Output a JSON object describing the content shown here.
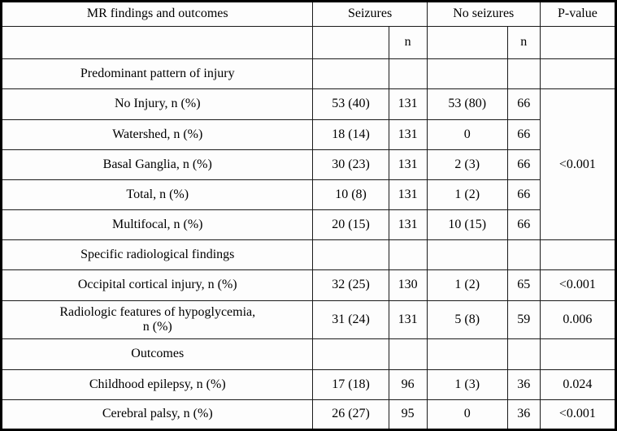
{
  "table": {
    "columns": {
      "findings_label": "MR findings and outcomes",
      "seizures_label": "Seizures",
      "no_seizures_label": "No seizures",
      "p_value_label": "P-value",
      "seizures_n_label": "n",
      "no_seizures_n_label": "n"
    },
    "rows": [
      {
        "type": "section",
        "label": "Predominant pattern of injury"
      },
      {
        "type": "data",
        "label": "No Injury, n (%)",
        "seizures": "53 (40)",
        "seizures_n": "131",
        "no_seizures": "53 (80)",
        "no_seizures_n": "66",
        "p": "<0.001",
        "p_rowspan": 5
      },
      {
        "type": "data",
        "label": "Watershed, n (%)",
        "seizures": "18 (14)",
        "seizures_n": "131",
        "no_seizures": "0",
        "no_seizures_n": "66",
        "p_merged": true
      },
      {
        "type": "data",
        "label": "Basal Ganglia, n (%)",
        "seizures": "30 (23)",
        "seizures_n": "131",
        "no_seizures": "2 (3)",
        "no_seizures_n": "66",
        "p_merged": true
      },
      {
        "type": "data",
        "label": "Total, n (%)",
        "seizures": "10 (8)",
        "seizures_n": "131",
        "no_seizures": "1 (2)",
        "no_seizures_n": "66",
        "p_merged": true
      },
      {
        "type": "data",
        "label": "Multifocal, n (%)",
        "seizures": "20 (15)",
        "seizures_n": "131",
        "no_seizures": "10 (15)",
        "no_seizures_n": "66",
        "p_merged": true
      },
      {
        "type": "section",
        "label": "Specific radiological findings"
      },
      {
        "type": "data",
        "label": "Occipital cortical injury, n (%)",
        "seizures": "32 (25)",
        "seizures_n": "130",
        "no_seizures": "1 (2)",
        "no_seizures_n": "65",
        "p": "<0.001"
      },
      {
        "type": "data",
        "label": "Radiologic features of hypoglycemia,\nn (%)",
        "seizures": "31 (24)",
        "seizures_n": "131",
        "no_seizures": "5 (8)",
        "no_seizures_n": "59",
        "p": "0.006"
      },
      {
        "type": "section",
        "label": "Outcomes"
      },
      {
        "type": "data",
        "label": "Childhood epilepsy, n (%)",
        "seizures": "17 (18)",
        "seizures_n": "96",
        "no_seizures": "1 (3)",
        "no_seizures_n": "36",
        "p": "0.024"
      },
      {
        "type": "data",
        "label": "Cerebral palsy, n (%)",
        "seizures": "26 (27)",
        "seizures_n": "95",
        "no_seizures": "0",
        "no_seizures_n": "36",
        "p": "<0.001"
      }
    ]
  }
}
